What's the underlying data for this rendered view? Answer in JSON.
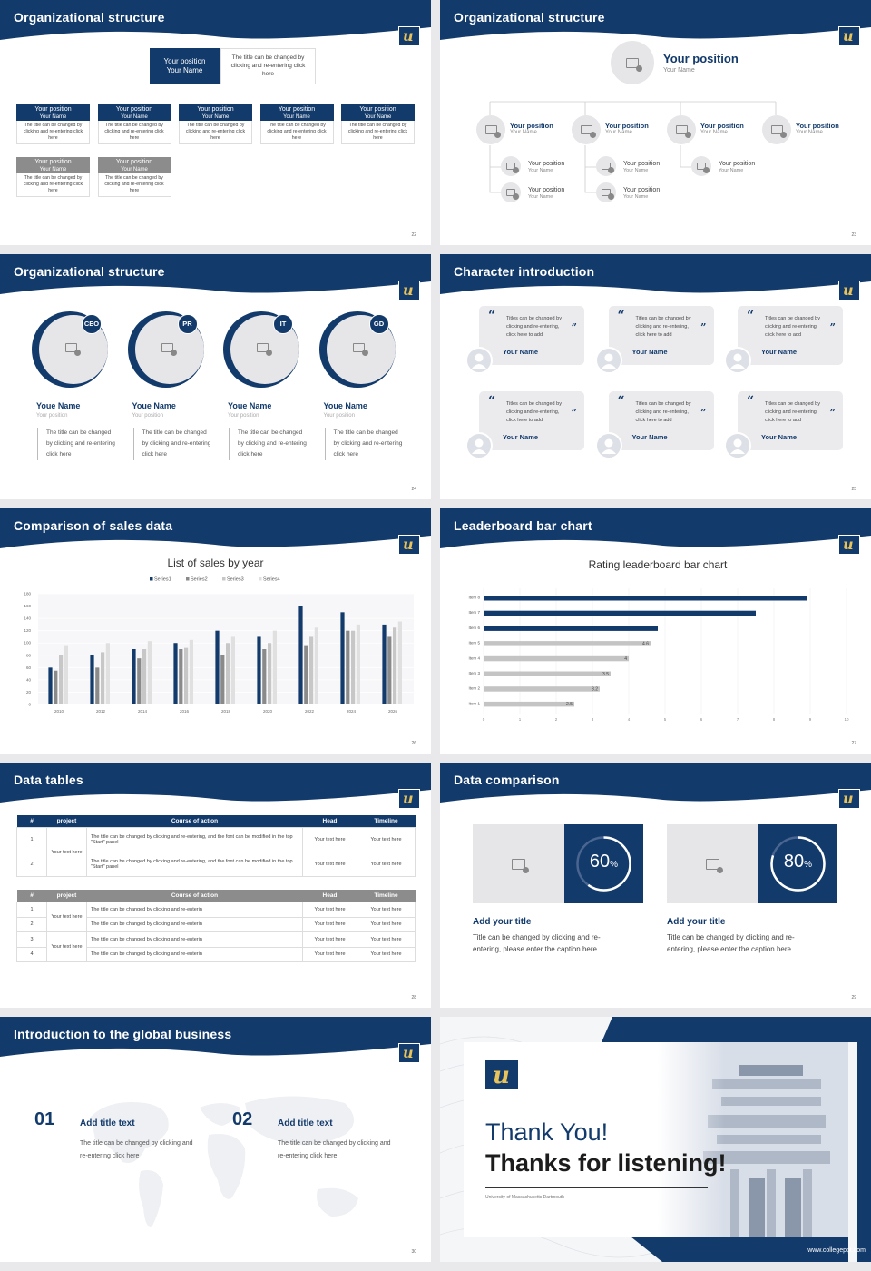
{
  "colors": {
    "navy": "#123a6b",
    "gold": "#e8c25a",
    "grey": "#888888",
    "light": "#e6e5e8"
  },
  "slides": {
    "s22": {
      "title": "Organizational structure",
      "top": {
        "position": "Your position",
        "name": "Your Name",
        "desc": "The title can be changed by clicking and re-entering click here"
      },
      "row1": [
        {
          "position": "Your position",
          "name": "Your Name",
          "desc": "The title can be changed by clicking and re-entering click here"
        },
        {
          "position": "Your position",
          "name": "Your Name",
          "desc": "The title can be changed by clicking and re-entering click here"
        },
        {
          "position": "Your position",
          "name": "Your Name",
          "desc": "The title can be changed by clicking and re-entering click here"
        },
        {
          "position": "Your position",
          "name": "Your Name",
          "desc": "The title can be changed by clicking and re-entering click here"
        },
        {
          "position": "Your position",
          "name": "Your Name",
          "desc": "The title can be changed by clicking and re-entering click here"
        }
      ],
      "row2": [
        {
          "position": "Your position",
          "name": "Your Name",
          "desc": "The title can be changed by clicking and re-entering click here"
        },
        {
          "position": "Your position",
          "name": "Your Name",
          "desc": "The title can be changed by clicking and re-entering click here"
        }
      ],
      "page": "22"
    },
    "s23": {
      "title": "Organizational structure",
      "top": {
        "position": "Your position",
        "name": "Your Name"
      },
      "members": [
        {
          "position": "Your position",
          "name": "Your Name"
        },
        {
          "position": "Your position",
          "name": "Your Name"
        },
        {
          "position": "Your position",
          "name": "Your Name"
        },
        {
          "position": "Your position",
          "name": "Your Name"
        }
      ],
      "subs": [
        {
          "position": "Your position",
          "name": "Your Name"
        },
        {
          "position": "Your position",
          "name": "Your Name"
        },
        {
          "position": "Your position",
          "name": "Your Name"
        },
        {
          "position": "Your position",
          "name": "Your Name"
        },
        {
          "position": "Your position",
          "name": "Your Name"
        }
      ],
      "page": "23"
    },
    "s24": {
      "title": "Organizational structure",
      "people": [
        {
          "tag": "CEO",
          "name": "Youe Name",
          "position": "Your position",
          "desc": "The title can be changed by clicking and re-entering click here"
        },
        {
          "tag": "PR",
          "name": "Youe Name",
          "position": "Your position",
          "desc": "The title can be changed by clicking and re-entering click here"
        },
        {
          "tag": "IT",
          "name": "Youe Name",
          "position": "Your position",
          "desc": "The title can be changed by clicking and re-entering click here"
        },
        {
          "tag": "GD",
          "name": "Youe Name",
          "position": "Your position",
          "desc": "The title can be changed by clicking and re-entering click here"
        }
      ],
      "page": "24"
    },
    "s25": {
      "title": "Character introduction",
      "cards": [
        {
          "quote": "Titles can be changed by clicking and re-entering, click here to add",
          "name": "Your Name"
        },
        {
          "quote": "Titles can be changed by clicking and re-entering, click here to add",
          "name": "Your Name"
        },
        {
          "quote": "Titles can be changed by clicking and re-entering, click here to add",
          "name": "Your Name"
        },
        {
          "quote": "Titles can be changed by clicking and re-entering, click here to add",
          "name": "Your Name"
        },
        {
          "quote": "Titles can be changed by clicking and re-entering, click here to add",
          "name": "Your Name"
        },
        {
          "quote": "Titles can be changed by clicking and re-entering, click here to add",
          "name": "Your Name"
        }
      ],
      "page": "25"
    },
    "s26": {
      "title": "Comparison of sales data",
      "page": "26"
    },
    "s27": {
      "title": "Leaderboard bar chart",
      "page": "27"
    },
    "s28": {
      "title": "Data tables",
      "t1_headers": [
        "#",
        "project",
        "Course of action",
        "Head",
        "Timeline"
      ],
      "t1_project": "Your text here",
      "t1_rows": [
        {
          "n": "1",
          "action": "The title can be changed by clicking and re-entering, and the font can be modified in the top \"Start\" panel",
          "head": "Your text here",
          "time": "Your text here"
        },
        {
          "n": "2",
          "action": "The title can be changed by clicking and re-entering, and the font can be modified in the top \"Start\" panel",
          "head": "Your text here",
          "time": "Your text here"
        }
      ],
      "t2_headers": [
        "#",
        "project",
        "Course of action",
        "Head",
        "Timeline"
      ],
      "t2_project_a": "Your text here",
      "t2_project_b": "Your text here",
      "t2_rows": [
        {
          "n": "1",
          "action": "The title can be changed by clicking and re-enterin",
          "head": "Your text here",
          "time": "Your text here"
        },
        {
          "n": "2",
          "action": "The title can be changed by clicking and re-enterin",
          "head": "Your text here",
          "time": "Your text here"
        },
        {
          "n": "3",
          "action": "The title can be changed by clicking and re-enterin",
          "head": "Your text here",
          "time": "Your text here"
        },
        {
          "n": "4",
          "action": "The title can be changed by clicking and re-enterin",
          "head": "Your text here",
          "time": "Your text here"
        }
      ],
      "page": "28"
    },
    "s29": {
      "title": "Data comparison",
      "items": [
        {
          "percent": 60,
          "num": "60",
          "unit": "%",
          "title": "Add your title",
          "desc": "Title can be changed by clicking and re-entering, please enter the caption here"
        },
        {
          "percent": 80,
          "num": "80",
          "unit": "%",
          "title": "Add your title",
          "desc": "Title can be changed by clicking and re-entering, please enter the caption here"
        }
      ],
      "page": "29"
    },
    "s30": {
      "title": "Introduction to the global business",
      "items": [
        {
          "num": "01",
          "title": "Add title text",
          "desc": "The title can be changed by clicking and re-entering click here"
        },
        {
          "num": "02",
          "title": "Add title text",
          "desc": "The title can be changed by clicking and re-entering click here"
        }
      ],
      "page": "30"
    },
    "s31": {
      "line1": "Thank You!",
      "line2": "Thanks for listening!",
      "university": "University of Massachusetts Dartmouth",
      "website": "www.collegeppt.com"
    }
  },
  "chart_data": [
    {
      "type": "bar",
      "title": "List of sales by year",
      "categories": [
        "2010",
        "2012",
        "2014",
        "2016",
        "2018",
        "2020",
        "2022",
        "2024",
        "2026"
      ],
      "series": [
        {
          "name": "Series1",
          "values": [
            60,
            80,
            90,
            100,
            120,
            110,
            160,
            150,
            130
          ],
          "color": "#123a6b"
        },
        {
          "name": "Series2",
          "values": [
            55,
            60,
            75,
            90,
            80,
            90,
            95,
            120,
            110
          ],
          "color": "#8a8a8a"
        },
        {
          "name": "Series3",
          "values": [
            80,
            85,
            90,
            92,
            100,
            100,
            110,
            120,
            125
          ],
          "color": "#c7c7c7"
        },
        {
          "name": "Series4",
          "values": [
            95,
            100,
            103,
            105,
            110,
            120,
            125,
            130,
            135
          ],
          "color": "#e0e0e0"
        }
      ],
      "ylim": [
        0,
        180
      ],
      "yticks": [
        "0",
        "20",
        "40",
        "60",
        "80",
        "100",
        "120",
        "140",
        "160",
        "180"
      ],
      "legend": "top"
    },
    {
      "type": "bar",
      "orientation": "horizontal",
      "title": "Rating leaderboard bar chart",
      "categories": [
        "Item 8",
        "Item 7",
        "Item 6",
        "Item 5",
        "Item 4",
        "Item 3",
        "Item 2",
        "Item 1"
      ],
      "values": [
        8.9,
        7.5,
        4.8,
        4.6,
        4,
        3.5,
        3.2,
        2.5
      ],
      "labels": [
        "",
        "",
        "",
        "4.6",
        "4",
        "3.5",
        "3.2",
        "2.5"
      ],
      "highlight_count": 3,
      "xlim": [
        0,
        10
      ],
      "xticks": [
        "0",
        "1",
        "2",
        "3",
        "4",
        "5",
        "6",
        "7",
        "8",
        "9",
        "10"
      ]
    }
  ]
}
